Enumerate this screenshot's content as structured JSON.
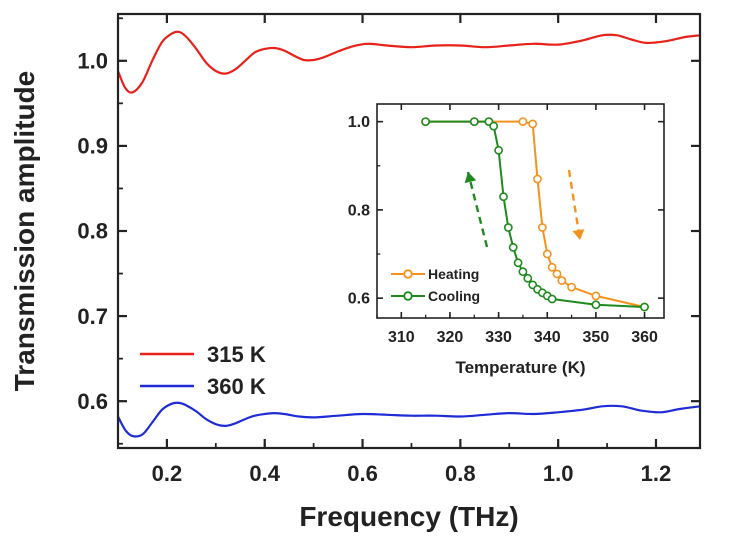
{
  "colors": {
    "red_series": "#e8211a",
    "blue_series": "#1f2bd6",
    "heating": "#f5921e",
    "cooling": "#1e8a1e",
    "axis": "#222222"
  },
  "chart_data": [
    {
      "type": "line",
      "title": "",
      "xlabel": "Frequency (THz)",
      "ylabel": "Transmission amplitude",
      "xlim": [
        0.1,
        1.29
      ],
      "ylim": [
        0.545,
        1.055
      ],
      "xticks": [
        0.2,
        0.4,
        0.6,
        0.8,
        1.0,
        1.2
      ],
      "xtick_labels": [
        "0.2",
        "0.4",
        "0.6",
        "0.8",
        "1.0",
        "1.2"
      ],
      "yticks": [
        0.6,
        0.7,
        0.8,
        0.9,
        1.0
      ],
      "ytick_labels": [
        "0.6",
        "0.7",
        "0.8",
        "0.9",
        "1.0"
      ],
      "legend_position": "bottom-left",
      "series": [
        {
          "name": "315 K",
          "color": "#e8211a",
          "x": [
            0.1,
            0.115,
            0.13,
            0.15,
            0.17,
            0.19,
            0.21,
            0.225,
            0.24,
            0.26,
            0.28,
            0.3,
            0.32,
            0.34,
            0.36,
            0.38,
            0.4,
            0.42,
            0.44,
            0.46,
            0.48,
            0.5,
            0.52,
            0.55,
            0.58,
            0.61,
            0.65,
            0.7,
            0.75,
            0.8,
            0.85,
            0.9,
            0.95,
            1.0,
            1.05,
            1.09,
            1.12,
            1.15,
            1.18,
            1.22,
            1.26,
            1.29
          ],
          "y": [
            0.988,
            0.968,
            0.963,
            0.975,
            1.0,
            1.022,
            1.032,
            1.034,
            1.028,
            1.014,
            0.998,
            0.988,
            0.985,
            0.99,
            1.0,
            1.01,
            1.014,
            1.015,
            1.012,
            1.006,
            1.001,
            1.001,
            1.004,
            1.011,
            1.017,
            1.02,
            1.018,
            1.016,
            1.018,
            1.018,
            1.016,
            1.018,
            1.02,
            1.019,
            1.024,
            1.03,
            1.03,
            1.025,
            1.021,
            1.023,
            1.028,
            1.03
          ]
        },
        {
          "name": "360 K",
          "color": "#1f2bd6",
          "x": [
            0.1,
            0.115,
            0.13,
            0.15,
            0.17,
            0.19,
            0.21,
            0.225,
            0.24,
            0.26,
            0.28,
            0.3,
            0.32,
            0.34,
            0.36,
            0.38,
            0.4,
            0.42,
            0.44,
            0.47,
            0.5,
            0.55,
            0.6,
            0.65,
            0.7,
            0.75,
            0.8,
            0.85,
            0.9,
            0.95,
            1.0,
            1.05,
            1.09,
            1.13,
            1.17,
            1.21,
            1.25,
            1.29
          ],
          "y": [
            0.582,
            0.566,
            0.559,
            0.561,
            0.575,
            0.59,
            0.597,
            0.598,
            0.595,
            0.588,
            0.579,
            0.573,
            0.571,
            0.574,
            0.579,
            0.583,
            0.585,
            0.586,
            0.585,
            0.582,
            0.581,
            0.583,
            0.585,
            0.584,
            0.583,
            0.583,
            0.582,
            0.584,
            0.586,
            0.585,
            0.587,
            0.59,
            0.594,
            0.594,
            0.589,
            0.587,
            0.591,
            0.594
          ]
        }
      ]
    },
    {
      "type": "line",
      "title": "",
      "xlabel": "Temperature (K)",
      "ylabel": "",
      "xlim": [
        305,
        364
      ],
      "ylim": [
        0.555,
        1.04
      ],
      "xticks": [
        310,
        320,
        330,
        340,
        350,
        360
      ],
      "xtick_labels": [
        "310",
        "320",
        "330",
        "340",
        "350",
        "360"
      ],
      "yticks": [
        0.6,
        0.8,
        1.0
      ],
      "ytick_labels": [
        "0.6",
        "0.8",
        "1.0"
      ],
      "legend_position": "bottom-left",
      "annotations": [
        "orange dashed arrow pointing down (heating)",
        "green dashed arrow pointing up (cooling)"
      ],
      "series": [
        {
          "name": "Heating",
          "color": "#f5921e",
          "marker": "open-circle",
          "x": [
            315,
            325,
            328,
            335,
            337,
            338,
            339,
            340,
            341,
            342,
            343,
            345,
            350,
            360
          ],
          "y": [
            1.0,
            1.0,
            1.0,
            1.0,
            0.995,
            0.87,
            0.76,
            0.7,
            0.67,
            0.655,
            0.64,
            0.625,
            0.605,
            0.58
          ]
        },
        {
          "name": "Cooling",
          "color": "#1e8a1e",
          "marker": "open-circle",
          "x": [
            315,
            325,
            328,
            329,
            330,
            331,
            332,
            333,
            334,
            335,
            336,
            337,
            338,
            339,
            340,
            341,
            350,
            360
          ],
          "y": [
            1.0,
            1.0,
            1.0,
            0.99,
            0.935,
            0.83,
            0.76,
            0.715,
            0.68,
            0.66,
            0.645,
            0.63,
            0.62,
            0.612,
            0.605,
            0.598,
            0.585,
            0.58
          ]
        }
      ]
    }
  ]
}
